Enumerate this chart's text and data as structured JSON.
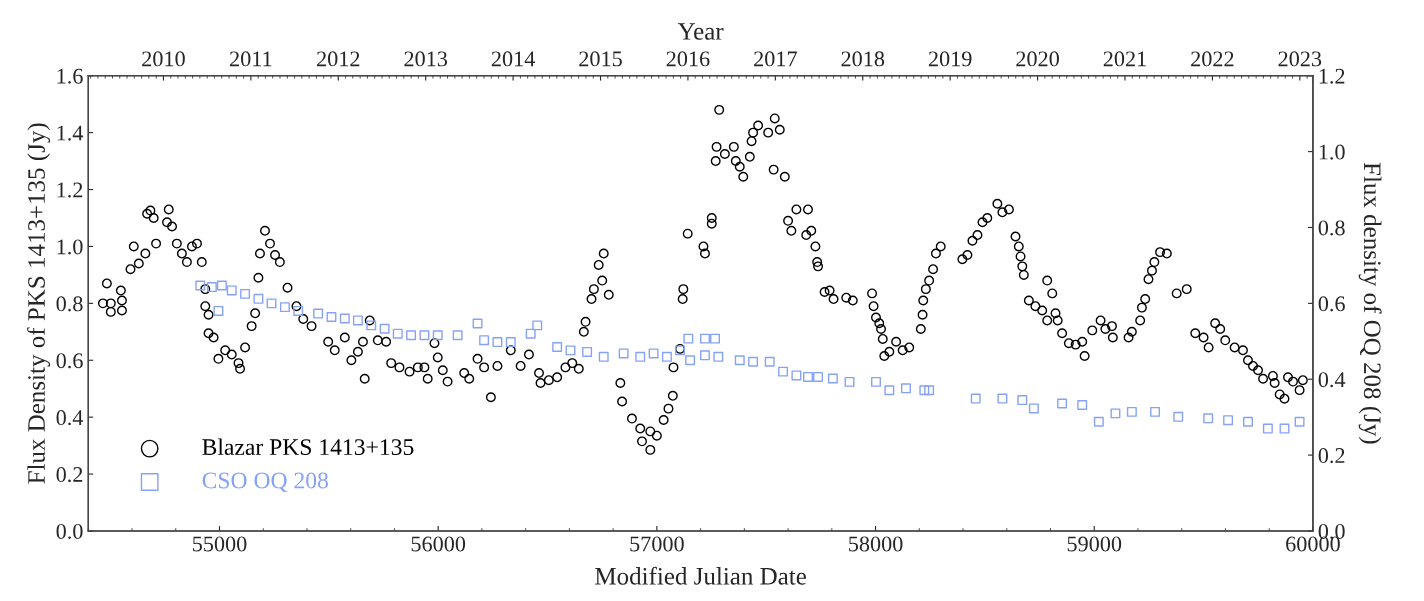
{
  "chart_data": {
    "type": "scatter",
    "xlabel": "Modified Julian Date",
    "ylabel": "Flux Density of PKS 1413+135 (Jy)",
    "y2label": "Flux density of OQ 208 (Jy)",
    "x2label": "Year",
    "xlim": [
      54400,
      60000
    ],
    "xticks": [
      55000,
      56000,
      57000,
      58000,
      59000,
      60000
    ],
    "ylim": [
      0,
      1.6
    ],
    "yticks": [
      {
        "value": 0,
        "label": "0.0"
      },
      {
        "value": 0.2,
        "label": "0.2"
      },
      {
        "value": 0.4,
        "label": "0.4"
      },
      {
        "value": 0.6,
        "label": "0.6"
      },
      {
        "value": 0.8,
        "label": "0.8"
      },
      {
        "value": 1.0,
        "label": "1.0"
      },
      {
        "value": 1.2,
        "label": "1.2"
      },
      {
        "value": 1.4,
        "label": "1.4"
      },
      {
        "value": 1.6,
        "label": "1.6"
      }
    ],
    "y2lim": [
      0,
      1.2
    ],
    "y2ticks": [
      {
        "value": 0,
        "label": "0.0"
      },
      {
        "value": 0.2,
        "label": "0.2"
      },
      {
        "value": 0.4,
        "label": "0.4"
      },
      {
        "value": 0.6,
        "label": "0.6"
      },
      {
        "value": 0.8,
        "label": "0.8"
      },
      {
        "value": 1.0,
        "label": "1.0"
      },
      {
        "value": 1.2,
        "label": "1.2"
      }
    ],
    "x2lim": [
      2009.14,
      2023.15
    ],
    "x2ticks": [
      2010,
      2011,
      2012,
      2013,
      2014,
      2015,
      2016,
      2017,
      2018,
      2019,
      2020,
      2021,
      2022,
      2023
    ],
    "grid": false,
    "legend": "bottom left",
    "series": [
      {
        "name": "Blazar PKS 1413+135",
        "color": "#000000",
        "marker": "circle",
        "axis": "y",
        "x": [
          54467,
          54485,
          54503,
          54503,
          54549,
          54554,
          54554,
          54593,
          54608,
          54631,
          54661,
          54669,
          54684,
          54699,
          54710,
          54760,
          54768,
          54783,
          54805,
          54828,
          54851,
          54874,
          54897,
          54919,
          54935,
          54935,
          54950,
          54950,
          54973,
          54995,
          55026,
          55056,
          55087,
          55094,
          55117,
          55147,
          55163,
          55178,
          55185,
          55208,
          55231,
          55254,
          55276,
          55311,
          55352,
          55383,
          55421,
          55497,
          55527,
          55573,
          55603,
          55633,
          55656,
          55664,
          55687,
          55724,
          55762,
          55785,
          55823,
          55869,
          55907,
          55937,
          55952,
          55983,
          55998,
          56021,
          56043,
          56119,
          56142,
          56180,
          56210,
          56241,
          56271,
          56332,
          56377,
          56415,
          56461,
          56468,
          56506,
          56544,
          56582,
          56613,
          56643,
          56666,
          56674,
          56701,
          56712,
          56734,
          56750,
          56757,
          56780,
          56833,
          56841,
          56886,
          56924,
          56932,
          56970,
          56970,
          57000,
          57031,
          57053,
          57073,
          57076,
          57106,
          57118,
          57121,
          57141,
          57213,
          57220,
          57251,
          57251,
          57269,
          57273,
          57285,
          57311,
          57352,
          57361,
          57379,
          57395,
          57425,
          57433,
          57440,
          57463,
          57509,
          57534,
          57539,
          57562,
          57585,
          57600,
          57615,
          57638,
          57683,
          57691,
          57706,
          57725,
          57733,
          57737,
          57767,
          57790,
          57808,
          57866,
          57896,
          57984,
          57991,
          58002,
          58017,
          58025,
          58033,
          58040,
          58063,
          58094,
          58124,
          58154,
          58207,
          58215,
          58218,
          58230,
          58245,
          58263,
          58276,
          58298,
          58397,
          58420,
          58443,
          58466,
          58489,
          58511,
          58557,
          58580,
          58610,
          58640,
          58655,
          58663,
          58671,
          58678,
          58701,
          58731,
          58762,
          58785,
          58785,
          58808,
          58823,
          58833,
          58853,
          58884,
          58915,
          58945,
          58956,
          58991,
          59029,
          59051,
          59081,
          59085,
          59157,
          59172,
          59210,
          59218,
          59233,
          59248,
          59264,
          59275,
          59301,
          59332,
          59377,
          59423,
          59462,
          59500,
          59523,
          59553,
          59576,
          59599,
          59642,
          59680,
          59703,
          59726,
          59749,
          59772,
          59817,
          59825,
          59848,
          59870,
          59886,
          59909,
          59939,
          59954
        ],
        "values": [
          0.8,
          0.87,
          0.8,
          0.77,
          0.845,
          0.81,
          0.775,
          0.92,
          1.0,
          0.94,
          0.975,
          1.115,
          1.126,
          1.1,
          1.01,
          1.085,
          1.13,
          1.07,
          1.01,
          0.975,
          0.945,
          1.0,
          1.01,
          0.945,
          0.85,
          0.79,
          0.76,
          0.695,
          0.68,
          0.605,
          0.635,
          0.62,
          0.59,
          0.57,
          0.645,
          0.72,
          0.765,
          0.89,
          0.975,
          1.055,
          1.01,
          0.97,
          0.945,
          0.855,
          0.79,
          0.745,
          0.72,
          0.665,
          0.635,
          0.68,
          0.6,
          0.63,
          0.665,
          0.535,
          0.74,
          0.67,
          0.665,
          0.59,
          0.575,
          0.56,
          0.575,
          0.575,
          0.535,
          0.66,
          0.61,
          0.565,
          0.525,
          0.555,
          0.535,
          0.605,
          0.575,
          0.47,
          0.58,
          0.635,
          0.58,
          0.62,
          0.555,
          0.52,
          0.53,
          0.54,
          0.575,
          0.59,
          0.57,
          0.7,
          0.735,
          0.815,
          0.85,
          0.935,
          0.88,
          0.975,
          0.83,
          0.52,
          0.455,
          0.395,
          0.36,
          0.315,
          0.35,
          0.285,
          0.335,
          0.39,
          0.43,
          0.475,
          0.575,
          0.64,
          0.815,
          0.85,
          1.045,
          1.0,
          0.975,
          1.1,
          1.08,
          1.3,
          1.35,
          1.48,
          1.325,
          1.35,
          1.3,
          1.28,
          1.245,
          1.315,
          1.37,
          1.4,
          1.425,
          1.4,
          1.27,
          1.45,
          1.41,
          1.245,
          1.09,
          1.055,
          1.13,
          1.04,
          1.13,
          1.055,
          1.0,
          0.945,
          0.93,
          0.84,
          0.845,
          0.815,
          0.82,
          0.81,
          0.835,
          0.79,
          0.75,
          0.73,
          0.71,
          0.675,
          0.615,
          0.63,
          0.665,
          0.635,
          0.645,
          0.71,
          0.76,
          0.81,
          0.85,
          0.88,
          0.92,
          0.975,
          1.0,
          0.955,
          0.97,
          1.02,
          1.04,
          1.085,
          1.1,
          1.15,
          1.12,
          1.13,
          1.035,
          1.0,
          0.965,
          0.93,
          0.9,
          0.81,
          0.79,
          0.775,
          0.88,
          0.74,
          0.835,
          0.765,
          0.74,
          0.695,
          0.66,
          0.655,
          0.665,
          0.615,
          0.705,
          0.74,
          0.71,
          0.72,
          0.68,
          0.68,
          0.7,
          0.74,
          0.785,
          0.815,
          0.885,
          0.915,
          0.945,
          0.98,
          0.975,
          0.835,
          0.85,
          0.695,
          0.68,
          0.645,
          0.73,
          0.71,
          0.67,
          0.645,
          0.635,
          0.6,
          0.58,
          0.565,
          0.535,
          0.545,
          0.52,
          0.48,
          0.465,
          0.54,
          0.525,
          0.495,
          0.53
        ]
      },
      {
        "name": "CSO OQ 208",
        "color": "#86a2f7",
        "marker": "square",
        "axis": "y2",
        "x": [
          54912,
          54965,
          54995,
          55011,
          55056,
          55117,
          55178,
          55238,
          55299,
          55360,
          55451,
          55512,
          55573,
          55633,
          55694,
          55755,
          55815,
          55876,
          55937,
          55998,
          56089,
          56180,
          56210,
          56271,
          56332,
          56423,
          56453,
          56544,
          56605,
          56681,
          56757,
          56848,
          56924,
          56985,
          57046,
          57106,
          57144,
          57152,
          57220,
          57220,
          57266,
          57281,
          57379,
          57440,
          57516,
          57577,
          57638,
          57691,
          57737,
          57805,
          57881,
          58002,
          58063,
          58139,
          58223,
          58245,
          58458,
          58580,
          58671,
          58724,
          58853,
          58945,
          59021,
          59097,
          59172,
          59278,
          59384,
          59521,
          59612,
          59703,
          59794,
          59870,
          59939
        ],
        "values": [
          0.647,
          0.643,
          0.58,
          0.647,
          0.634,
          0.625,
          0.612,
          0.6,
          0.59,
          0.58,
          0.573,
          0.564,
          0.56,
          0.555,
          0.542,
          0.533,
          0.52,
          0.516,
          0.516,
          0.516,
          0.516,
          0.547,
          0.503,
          0.498,
          0.498,
          0.52,
          0.542,
          0.485,
          0.476,
          0.472,
          0.459,
          0.468,
          0.459,
          0.468,
          0.459,
          0.476,
          0.507,
          0.45,
          0.507,
          0.463,
          0.507,
          0.459,
          0.45,
          0.446,
          0.446,
          0.42,
          0.41,
          0.406,
          0.406,
          0.402,
          0.393,
          0.393,
          0.371,
          0.376,
          0.371,
          0.371,
          0.349,
          0.349,
          0.345,
          0.323,
          0.336,
          0.332,
          0.288,
          0.31,
          0.314,
          0.314,
          0.301,
          0.297,
          0.292,
          0.288,
          0.27,
          0.27,
          0.288
        ]
      }
    ]
  }
}
